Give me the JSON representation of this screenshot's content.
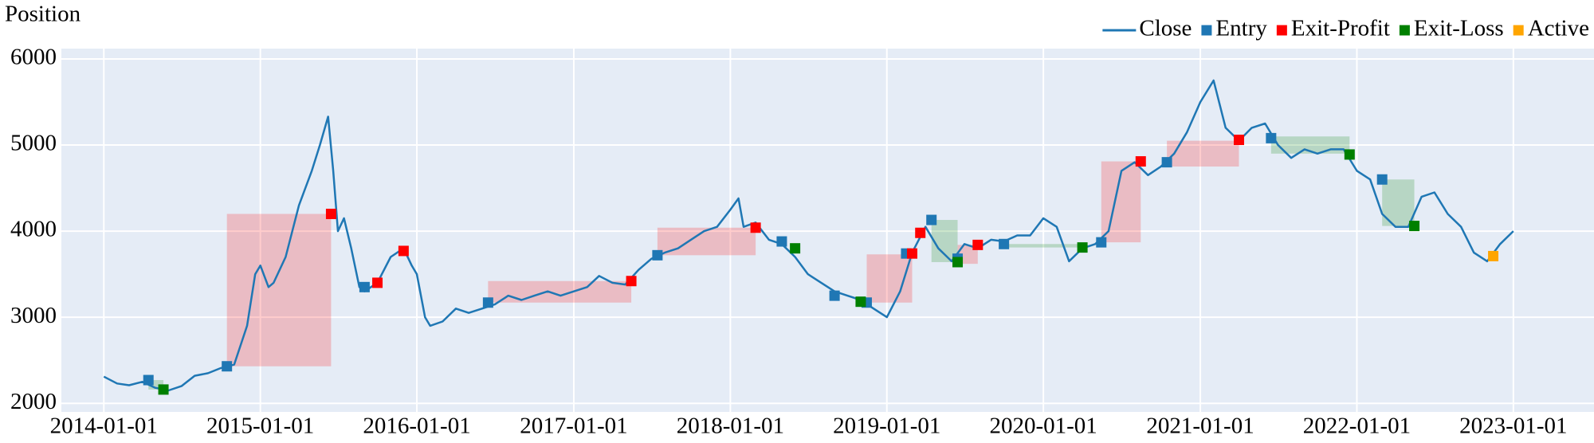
{
  "chart_data": {
    "type": "line",
    "ylabel": "Position",
    "xlim": [
      "2013-09-24",
      "2023-07-08"
    ],
    "ylim": [
      1900,
      6120
    ],
    "xticks": [
      "2014-01-01",
      "2015-01-01",
      "2016-01-01",
      "2017-01-01",
      "2018-01-01",
      "2019-01-01",
      "2020-01-01",
      "2021-01-01",
      "2022-01-01",
      "2023-01-01"
    ],
    "yticks": [
      2000,
      3000,
      4000,
      5000,
      6000
    ],
    "grid": true,
    "legend": "top-right",
    "zones": [
      {
        "color": "#ff0000",
        "opacity": 0.2,
        "boxes": [
          {
            "x": [
              "2014-10-15",
              "2015-06-15"
            ],
            "y": [
              2430,
              4200
            ]
          },
          {
            "x": [
              "2016-06-15",
              "2017-05-15"
            ],
            "y": [
              3170,
              3420
            ]
          },
          {
            "x": [
              "2017-07-15",
              "2018-03-01"
            ],
            "y": [
              3720,
              4040
            ]
          },
          {
            "x": [
              "2018-11-15",
              "2019-03-01"
            ],
            "y": [
              3170,
              3730
            ]
          },
          {
            "x": [
              "2019-06-15",
              "2019-08-01"
            ],
            "y": [
              3620,
              3840
            ]
          },
          {
            "x": [
              "2020-05-15",
              "2020-08-15"
            ],
            "y": [
              3870,
              4810
            ]
          },
          {
            "x": [
              "2020-10-15",
              "2021-04-01"
            ],
            "y": [
              4750,
              5050
            ]
          }
        ]
      },
      {
        "color": "#008000",
        "opacity": 0.2,
        "boxes": [
          {
            "x": [
              "2014-04-15",
              "2014-05-20"
            ],
            "y": [
              2160,
              2270
            ]
          },
          {
            "x": [
              "2019-04-15",
              "2019-06-15"
            ],
            "y": [
              3640,
              4130
            ]
          },
          {
            "x": [
              "2019-10-01",
              "2020-04-01"
            ],
            "y": [
              3810,
              3850
            ]
          },
          {
            "x": [
              "2021-06-15",
              "2021-12-15"
            ],
            "y": [
              4900,
              5100
            ]
          },
          {
            "x": [
              "2022-03-01",
              "2022-05-15"
            ],
            "y": [
              4060,
              4600
            ]
          }
        ]
      }
    ],
    "series": [
      {
        "name": "Close",
        "type": "line",
        "color": "#1f77b4",
        "x": [
          "2014-01-01",
          "2014-02-01",
          "2014-03-01",
          "2014-04-01",
          "2014-05-01",
          "2014-06-01",
          "2014-07-01",
          "2014-08-01",
          "2014-09-01",
          "2014-10-01",
          "2014-11-01",
          "2014-12-01",
          "2014-12-20",
          "2015-01-01",
          "2015-01-20",
          "2015-02-01",
          "2015-03-01",
          "2015-04-01",
          "2015-05-01",
          "2015-05-20",
          "2015-06-08",
          "2015-06-20",
          "2015-07-01",
          "2015-07-15",
          "2015-08-01",
          "2015-08-20",
          "2015-09-01",
          "2015-10-01",
          "2015-11-01",
          "2015-12-01",
          "2015-12-20",
          "2016-01-01",
          "2016-01-20",
          "2016-02-01",
          "2016-03-01",
          "2016-04-01",
          "2016-05-01",
          "2016-06-01",
          "2016-07-01",
          "2016-08-01",
          "2016-09-01",
          "2016-10-01",
          "2016-11-01",
          "2016-12-01",
          "2017-01-01",
          "2017-02-01",
          "2017-03-01",
          "2017-04-01",
          "2017-05-01",
          "2017-06-01",
          "2017-07-01",
          "2017-08-01",
          "2017-09-01",
          "2017-10-01",
          "2017-11-01",
          "2017-12-01",
          "2018-01-01",
          "2018-01-20",
          "2018-02-01",
          "2018-03-01",
          "2018-04-01",
          "2018-05-01",
          "2018-06-01",
          "2018-07-01",
          "2018-08-01",
          "2018-09-01",
          "2018-10-01",
          "2018-11-01",
          "2018-12-01",
          "2019-01-01",
          "2019-02-01",
          "2019-03-01",
          "2019-04-01",
          "2019-05-01",
          "2019-06-01",
          "2019-07-01",
          "2019-08-01",
          "2019-09-01",
          "2019-10-01",
          "2019-11-01",
          "2019-12-01",
          "2020-01-01",
          "2020-02-01",
          "2020-03-01",
          "2020-04-01",
          "2020-05-01",
          "2020-06-01",
          "2020-07-01",
          "2020-08-01",
          "2020-09-01",
          "2020-10-01",
          "2020-11-01",
          "2020-12-01",
          "2021-01-01",
          "2021-02-01",
          "2021-03-01",
          "2021-04-01",
          "2021-05-01",
          "2021-06-01",
          "2021-07-01",
          "2021-08-01",
          "2021-09-01",
          "2021-10-01",
          "2021-11-01",
          "2021-12-01",
          "2022-01-01",
          "2022-02-01",
          "2022-03-01",
          "2022-04-01",
          "2022-05-01",
          "2022-06-01",
          "2022-07-01",
          "2022-08-01",
          "2022-09-01",
          "2022-10-01",
          "2022-11-01",
          "2022-12-01",
          "2023-01-01"
        ],
        "values": [
          2310,
          2230,
          2210,
          2250,
          2180,
          2150,
          2200,
          2320,
          2350,
          2410,
          2450,
          2900,
          3500,
          3600,
          3350,
          3400,
          3700,
          4300,
          4700,
          5000,
          5330,
          4700,
          4000,
          4150,
          3800,
          3350,
          3300,
          3400,
          3700,
          3800,
          3600,
          3500,
          3000,
          2900,
          2950,
          3100,
          3050,
          3100,
          3150,
          3250,
          3200,
          3250,
          3300,
          3250,
          3300,
          3350,
          3480,
          3400,
          3380,
          3550,
          3680,
          3750,
          3800,
          3900,
          4000,
          4050,
          4250,
          4380,
          4050,
          4100,
          3900,
          3850,
          3700,
          3500,
          3400,
          3300,
          3250,
          3200,
          3100,
          3000,
          3300,
          3750,
          4050,
          3800,
          3650,
          3850,
          3800,
          3900,
          3880,
          3950,
          3950,
          4150,
          4050,
          3650,
          3800,
          3850,
          4000,
          4700,
          4800,
          4650,
          4750,
          4900,
          5150,
          5500,
          5750,
          5200,
          5050,
          5200,
          5250,
          5000,
          4850,
          4950,
          4900,
          4950,
          4950,
          4700,
          4600,
          4200,
          4050,
          4050,
          4400,
          4450,
          4200,
          4050,
          3750,
          3650,
          3850,
          4000
        ]
      },
      {
        "name": "Entry",
        "type": "scatter",
        "color": "#1f77b4",
        "x": [
          "2014-04-15",
          "2014-10-15",
          "2015-09-01",
          "2016-06-15",
          "2017-07-15",
          "2018-05-01",
          "2018-09-01",
          "2018-11-15",
          "2019-02-15",
          "2019-04-15",
          "2019-06-15",
          "2019-10-01",
          "2020-05-15",
          "2020-10-15",
          "2021-06-15",
          "2022-03-01"
        ],
        "values": [
          2270,
          2430,
          3350,
          3170,
          3720,
          3880,
          3250,
          3170,
          3740,
          4130,
          3680,
          3850,
          3870,
          4800,
          5080,
          4600
        ]
      },
      {
        "name": "Exit-Profit",
        "type": "scatter",
        "color": "#ff0000",
        "x": [
          "2015-06-15",
          "2015-10-01",
          "2015-12-01",
          "2017-05-15",
          "2018-03-01",
          "2019-03-01",
          "2019-03-20",
          "2019-08-01",
          "2020-08-15",
          "2021-04-01"
        ],
        "values": [
          4200,
          3400,
          3770,
          3420,
          4040,
          3740,
          3980,
          3840,
          4810,
          5060
        ]
      },
      {
        "name": "Exit-Loss",
        "type": "scatter",
        "color": "#008000",
        "x": [
          "2014-05-20",
          "2018-06-01",
          "2018-11-01",
          "2019-06-15",
          "2020-04-01",
          "2021-12-15",
          "2022-05-15"
        ],
        "values": [
          2160,
          3800,
          3180,
          3640,
          3810,
          4890,
          4060
        ]
      },
      {
        "name": "Active",
        "type": "scatter",
        "color": "#ffa500",
        "x": [
          "2022-11-15"
        ],
        "values": [
          3710
        ]
      }
    ]
  }
}
